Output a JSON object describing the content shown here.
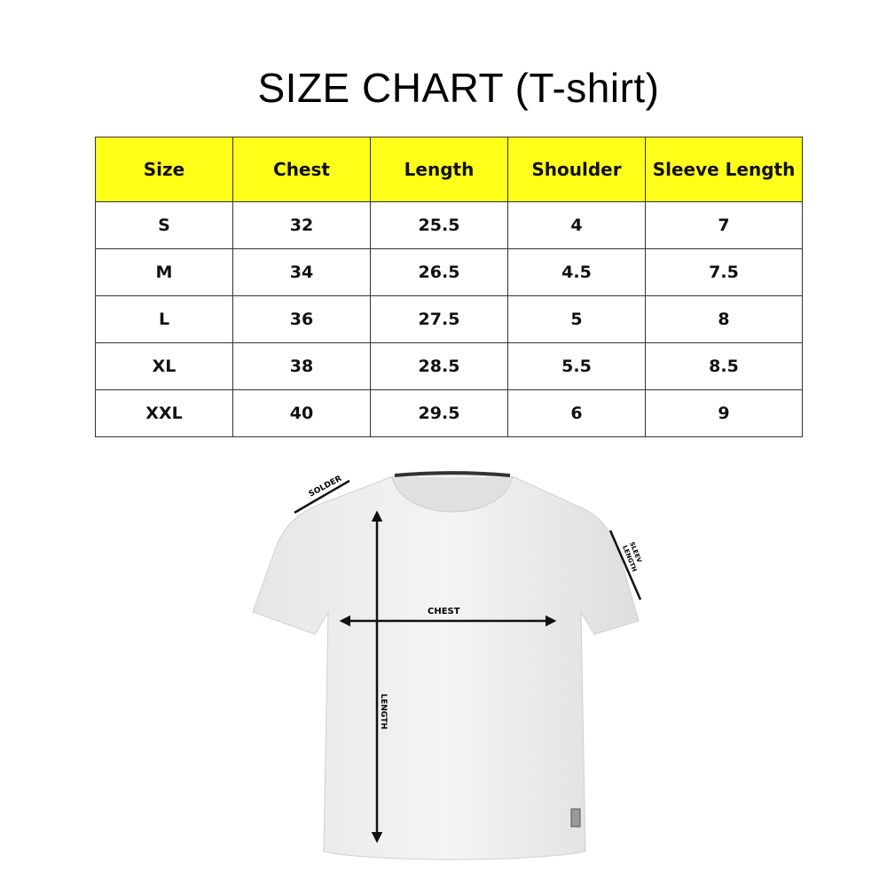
{
  "title": "SIZE CHART (T-shirt)",
  "header_color": "#ffff1a",
  "table": {
    "headers": [
      "Size",
      "Chest",
      "Length",
      "Shoulder",
      "Sleeve Length"
    ],
    "rows": [
      [
        "S",
        "32",
        "25.5",
        "4",
        "7"
      ],
      [
        "M",
        "34",
        "26.5",
        "4.5",
        "7.5"
      ],
      [
        "L",
        "36",
        "27.5",
        "5",
        "8"
      ],
      [
        "XL",
        "38",
        "28.5",
        "5.5",
        "8.5"
      ],
      [
        "XXL",
        "40",
        "29.5",
        "6",
        "9"
      ]
    ]
  },
  "diagram": {
    "labels": {
      "shoulder": "SOLDER",
      "chest": "CHEST",
      "length": "LENGTH",
      "sleeve_line1": "SLEEV",
      "sleeve_line2": "LENGTH"
    }
  }
}
